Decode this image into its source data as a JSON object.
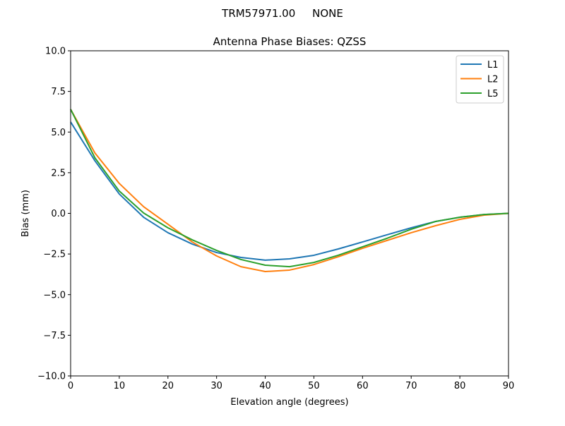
{
  "chart_data": {
    "type": "line",
    "suptitle": "TRM57971.00     NONE",
    "title": "Antenna Phase Biases: QZSS",
    "xlabel": "Elevation angle (degrees)",
    "ylabel": "Bias (mm)",
    "xlim": [
      0,
      90
    ],
    "ylim": [
      -10,
      10
    ],
    "xticks": [
      0,
      10,
      20,
      30,
      40,
      50,
      60,
      70,
      80,
      90
    ],
    "xtick_labels": [
      "0",
      "10",
      "20",
      "30",
      "40",
      "50",
      "60",
      "70",
      "80",
      "90"
    ],
    "yticks": [
      -10,
      -7.5,
      -5,
      -2.5,
      0,
      2.5,
      5,
      7.5,
      10
    ],
    "ytick_labels": [
      "−10.0",
      "−7.5",
      "−5.0",
      "−2.5",
      "0.0",
      "2.5",
      "5.0",
      "7.5",
      "10.0"
    ],
    "grid": false,
    "legend_position": "top-right",
    "x": [
      0,
      5,
      10,
      15,
      20,
      25,
      30,
      35,
      40,
      45,
      50,
      55,
      60,
      65,
      70,
      75,
      80,
      85,
      90
    ],
    "series": [
      {
        "name": "L1",
        "color": "#1f77b4",
        "values": [
          5.62,
          3.23,
          1.19,
          -0.24,
          -1.19,
          -1.89,
          -2.41,
          -2.71,
          -2.88,
          -2.8,
          -2.58,
          -2.19,
          -1.76,
          -1.32,
          -0.89,
          -0.5,
          -0.24,
          -0.07,
          0.0
        ]
      },
      {
        "name": "L2",
        "color": "#ff7f0e",
        "values": [
          6.4,
          3.71,
          1.84,
          0.41,
          -0.67,
          -1.76,
          -2.62,
          -3.28,
          -3.58,
          -3.49,
          -3.15,
          -2.67,
          -2.15,
          -1.67,
          -1.19,
          -0.76,
          -0.37,
          -0.11,
          0.0
        ]
      },
      {
        "name": "L5",
        "color": "#2ca02c",
        "values": [
          6.4,
          3.41,
          1.37,
          0.02,
          -0.89,
          -1.63,
          -2.28,
          -2.84,
          -3.19,
          -3.28,
          -3.02,
          -2.58,
          -2.06,
          -1.54,
          -0.98,
          -0.5,
          -0.24,
          -0.07,
          0.0
        ]
      }
    ]
  }
}
